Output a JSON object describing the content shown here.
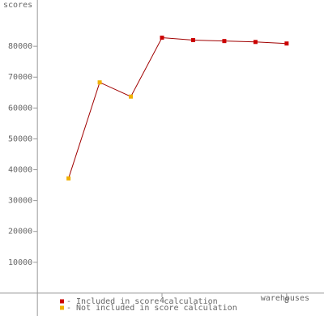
{
  "chart_data": {
    "type": "line",
    "y_label": "scores",
    "x_label": "warehouses",
    "x": [
      1,
      2,
      3,
      4,
      5,
      6,
      7,
      8
    ],
    "values": [
      37200,
      68300,
      63700,
      82800,
      82000,
      81700,
      81400,
      80900
    ],
    "line_color": "#a00000",
    "point_colors": [
      "#f0b000",
      "#f0b000",
      "#f0b000",
      "#cc0000",
      "#cc0000",
      "#cc0000",
      "#cc0000",
      "#cc0000"
    ],
    "legend": [
      {
        "name": "- Included in score calculation",
        "color": "#cc0000"
      },
      {
        "name": "- Not included in score calculation",
        "color": "#f0b000"
      }
    ],
    "xlim": [
      -1.2,
      9.2
    ],
    "ylim": [
      -10000,
      95000
    ],
    "xticks": [
      4,
      8
    ],
    "yticks": [
      10000,
      20000,
      30000,
      40000,
      50000,
      60000,
      70000,
      80000
    ],
    "grid": false
  }
}
